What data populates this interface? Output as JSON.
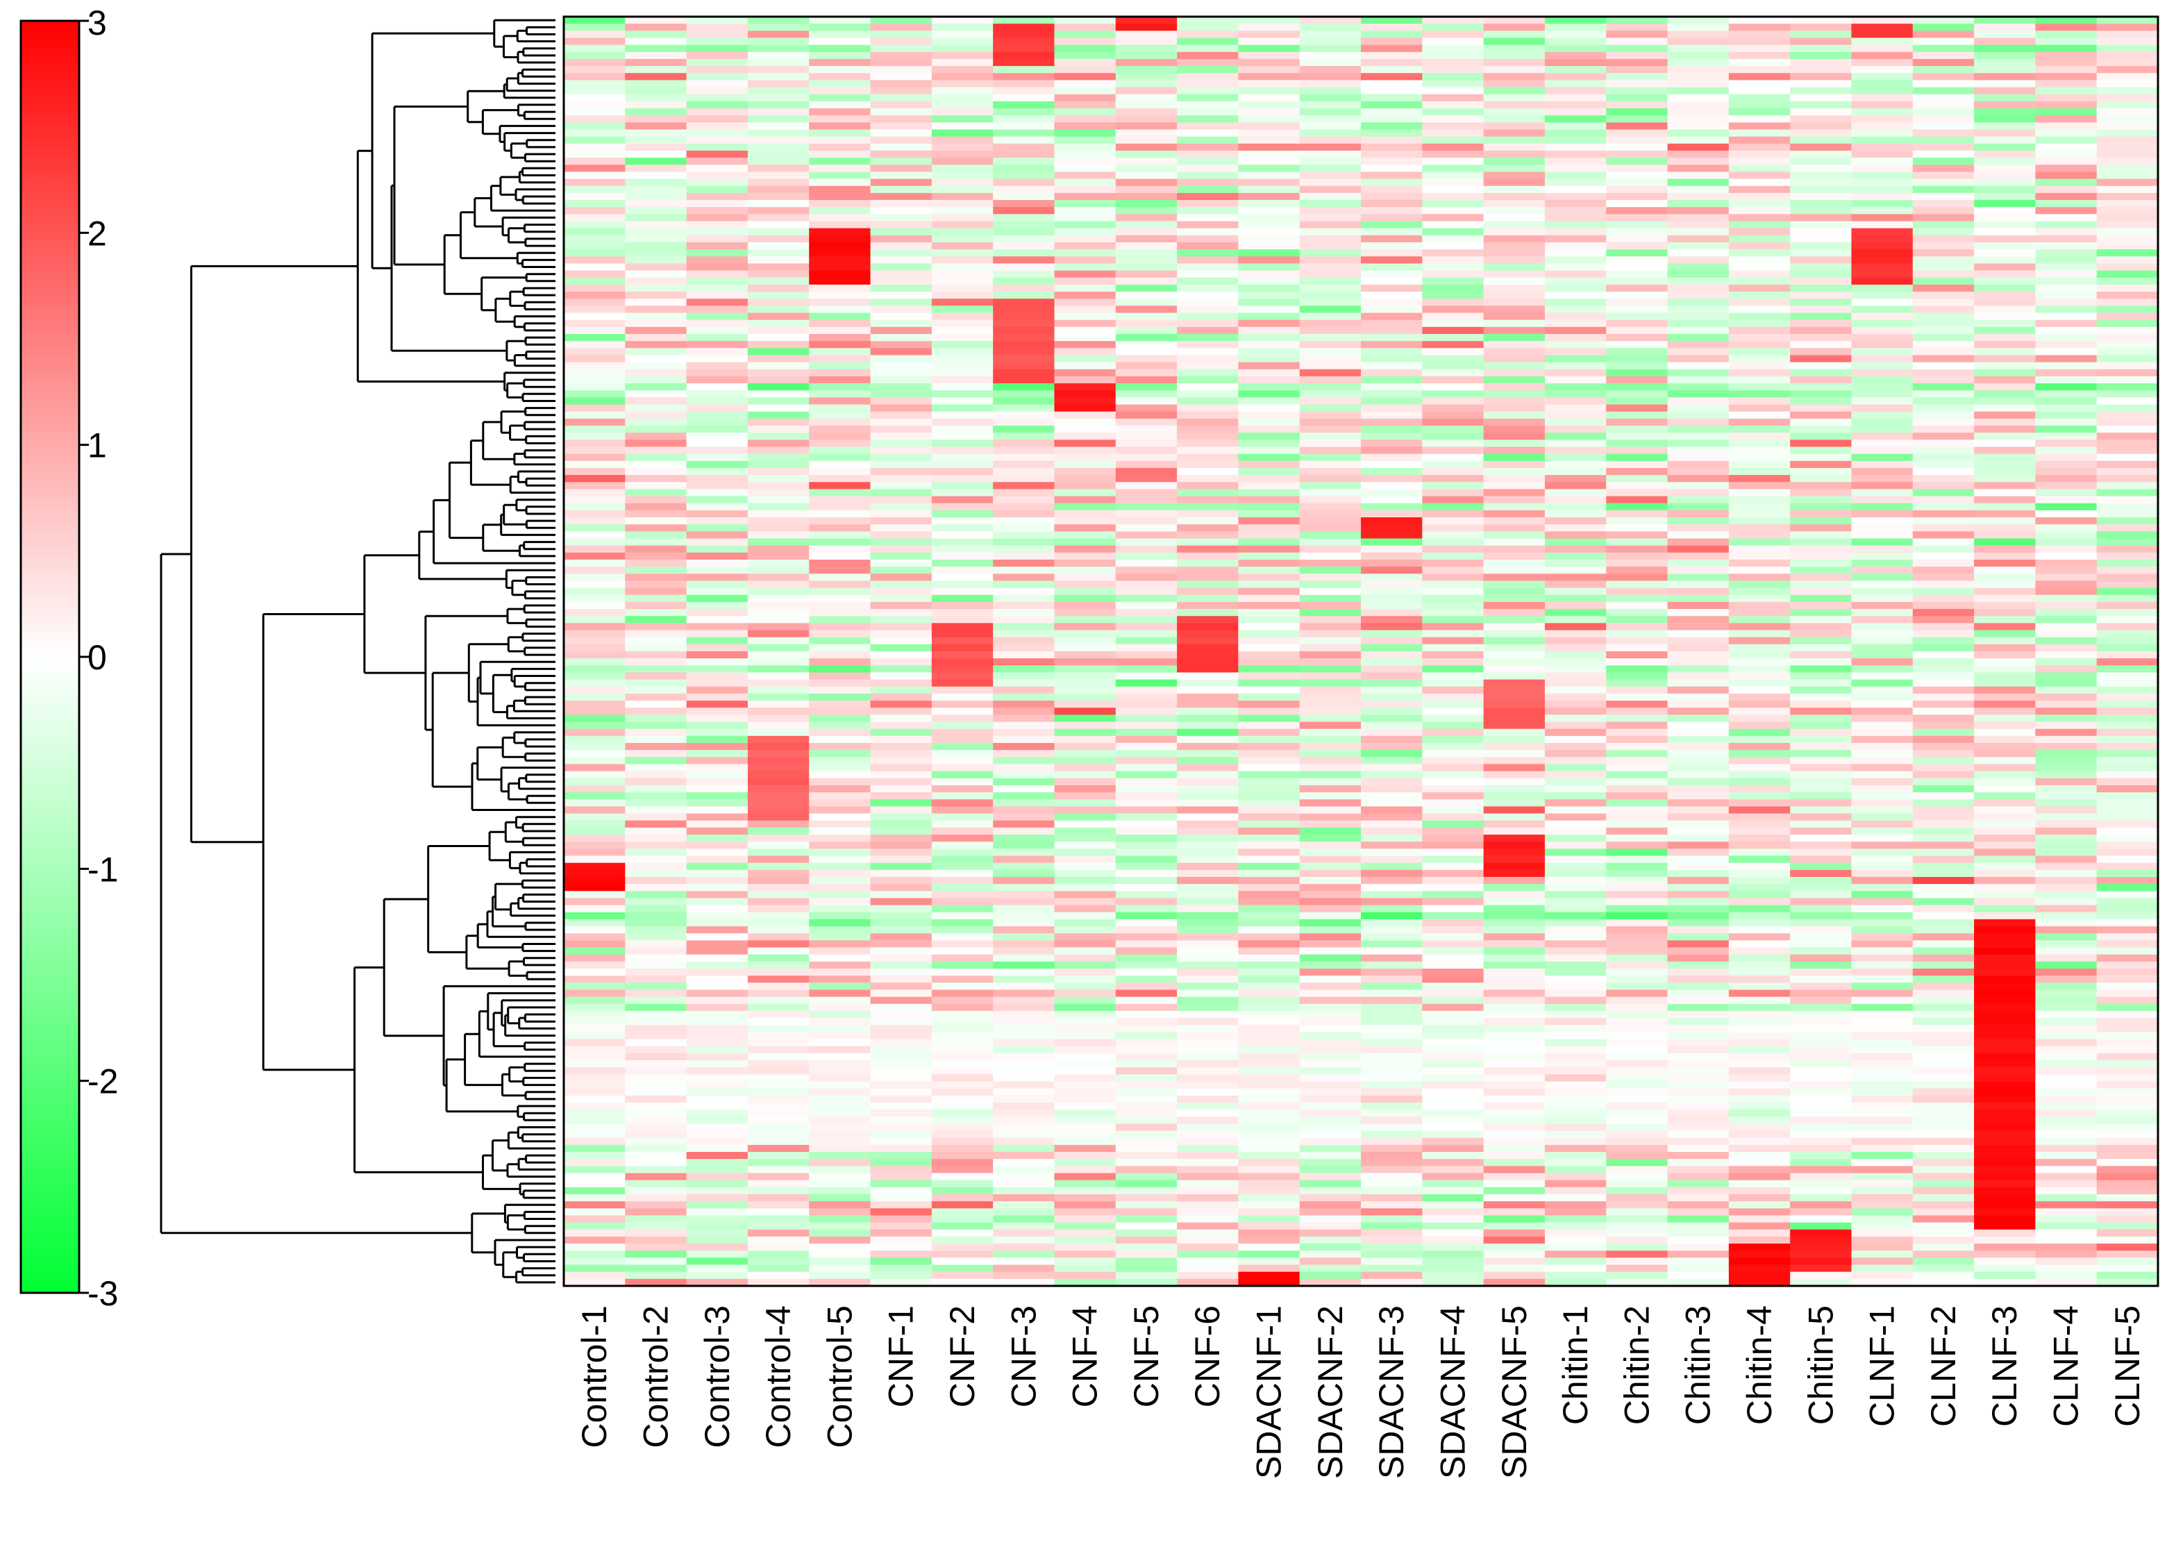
{
  "chart_data": {
    "type": "heatmap",
    "title": "",
    "xlabel": "",
    "ylabel": "",
    "colorscale": {
      "min": -3,
      "max": 3,
      "ticks": [
        "3",
        "2",
        "1",
        "0",
        "-1",
        "-2",
        "-3"
      ],
      "low_color": "#00ff33",
      "mid_color": "#ffffff",
      "high_color": "#ff0000"
    },
    "columns": [
      "Control-1",
      "Control-2",
      "Control-3",
      "Control-4",
      "Control-5",
      "CNF-1",
      "CNF-2",
      "CNF-3",
      "CNF-4",
      "CNF-5",
      "CNF-6",
      "SDACNF-1",
      "SDACNF-2",
      "SDACNF-3",
      "SDACNF-4",
      "SDACNF-5",
      "Chitin-1",
      "Chitin-2",
      "Chitin-3",
      "Chitin-4",
      "Chitin-5",
      "CLNF-1",
      "CLNF-2",
      "CLNF-3",
      "CLNF-4",
      "CLNF-5"
    ],
    "row_count": 180,
    "row_dendrogram": true,
    "blocks": [
      {
        "column": "Control-5",
        "rows": [
          30,
          38
        ],
        "value": 3
      },
      {
        "column": "CNF-3",
        "rows": [
          1,
          7
        ],
        "value": 2.5
      },
      {
        "column": "CNF-3",
        "rows": [
          40,
          52
        ],
        "value": 2.2
      },
      {
        "column": "CNF-4",
        "rows": [
          52,
          56
        ],
        "value": 2.8
      },
      {
        "column": "CNF-5",
        "rows": [
          0,
          2
        ],
        "value": 2.8
      },
      {
        "column": "CLNF-1",
        "rows": [
          30,
          38
        ],
        "value": 2.6
      },
      {
        "column": "CLNF-1",
        "rows": [
          1,
          3
        ],
        "value": 2.5
      },
      {
        "column": "CNF-6",
        "rows": [
          85,
          93
        ],
        "value": 2.4
      },
      {
        "column": "SDACNF-3",
        "rows": [
          71,
          74
        ],
        "value": 2.8
      },
      {
        "column": "SDACNF-5",
        "rows": [
          116,
          122
        ],
        "value": 2.8
      },
      {
        "column": "SDACNF-5",
        "rows": [
          94,
          101
        ],
        "value": 2.0
      },
      {
        "column": "Control-1",
        "rows": [
          120,
          124
        ],
        "value": 3
      },
      {
        "column": "CLNF-3",
        "rows": [
          128,
          170
        ],
        "value": 3
      },
      {
        "column": "Chitin-4",
        "rows": [
          174,
          180
        ],
        "value": 3
      },
      {
        "column": "Chitin-5",
        "rows": [
          172,
          178
        ],
        "value": 2.8
      },
      {
        "column": "CNF-2",
        "rows": [
          86,
          95
        ],
        "value": 2.2
      },
      {
        "column": "Control-4",
        "rows": [
          102,
          114
        ],
        "value": 2.0
      },
      {
        "column": "SDACNF-1",
        "rows": [
          178,
          180
        ],
        "value": 3
      }
    ]
  }
}
